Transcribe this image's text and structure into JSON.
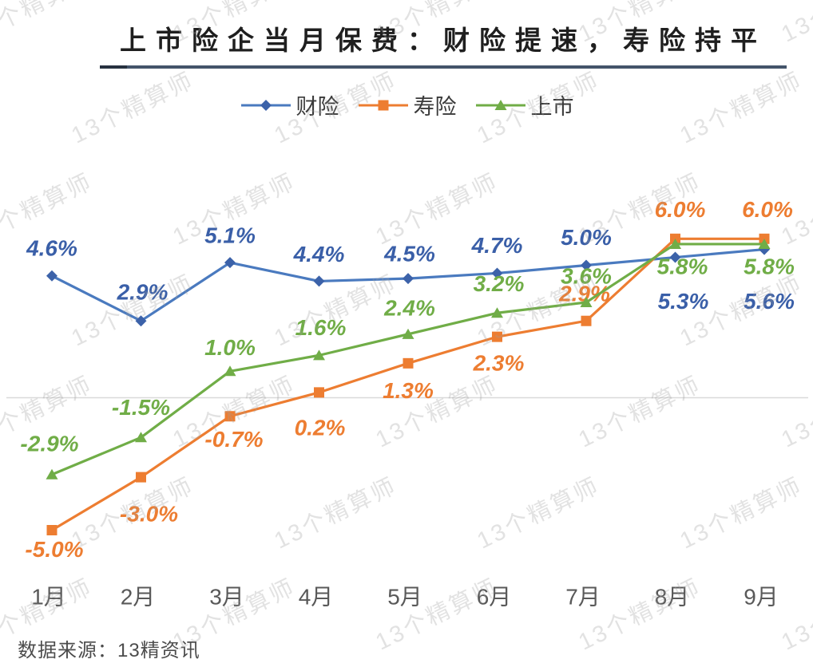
{
  "page": {
    "title": "上市险企当月保费：财险提速，寿险持平",
    "source_note": "数据来源：13精资讯",
    "watermark_text": "13个精算师"
  },
  "colors": {
    "title_underline": "#44546A",
    "gridline": "#D9D9D9",
    "axis_label": "#595959",
    "watermark": "rgba(160,160,160,0.30)"
  },
  "chart_data": {
    "type": "line",
    "title": "上市险企当月保费：财险提速，寿险持平",
    "categories": [
      "1月",
      "2月",
      "3月",
      "4月",
      "5月",
      "6月",
      "7月",
      "8月",
      "9月"
    ],
    "unit": "%",
    "legend_position": "top",
    "grid": "zero-line-only",
    "ylim": [
      -6,
      7
    ],
    "series": [
      {
        "name": "财险",
        "marker": "diamond",
        "color": "#4A7ABF",
        "marker_color": "#3C62A9",
        "label_color": "#3A5FA8",
        "values": [
          4.6,
          2.9,
          5.1,
          4.4,
          4.5,
          4.7,
          5.0,
          5.3,
          5.6
        ]
      },
      {
        "name": "寿险",
        "marker": "square",
        "color": "#ED7D31",
        "marker_color": "#ED7D31",
        "label_color": "#ED7D31",
        "values": [
          -5.0,
          -3.0,
          -0.7,
          0.2,
          1.3,
          2.3,
          2.9,
          6.0,
          6.0
        ]
      },
      {
        "name": "上市",
        "marker": "triangle",
        "color": "#70AD47",
        "marker_color": "#70AD47",
        "label_color": "#70AD47",
        "values": [
          -2.9,
          -1.5,
          1.0,
          1.6,
          2.4,
          3.2,
          3.6,
          5.8,
          5.8
        ]
      }
    ]
  }
}
